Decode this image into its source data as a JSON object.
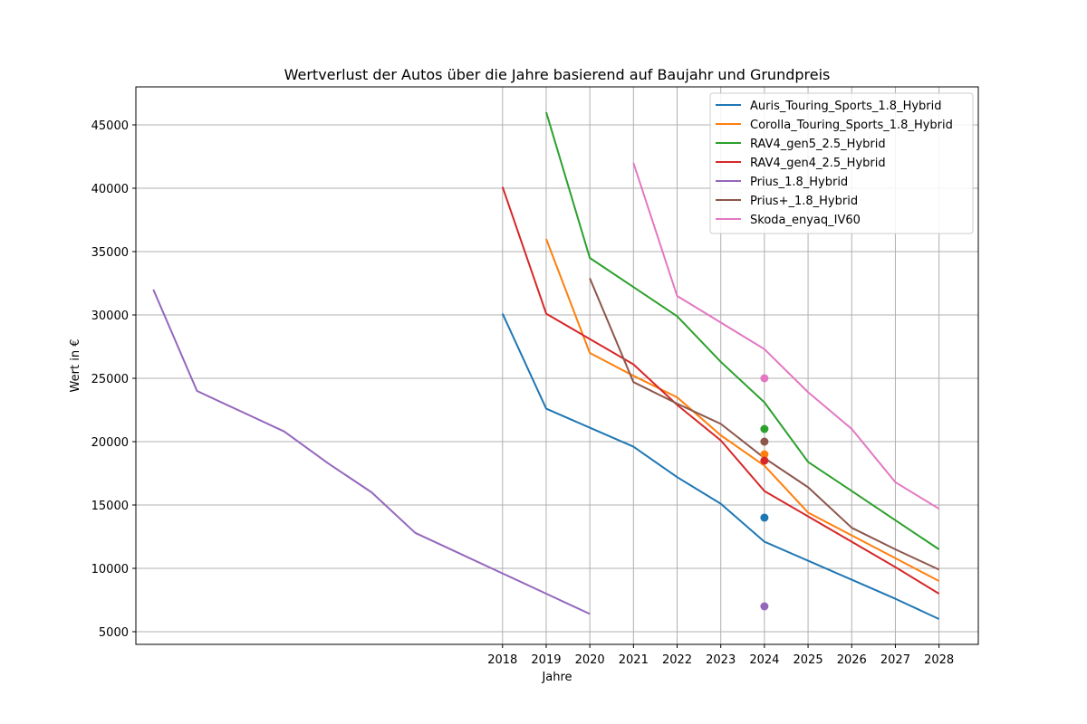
{
  "chart_data": {
    "type": "line",
    "title": "Wertverlust der Autos über die Jahre basierend auf Baujahr und Grundpreis",
    "xlabel": "Jahre",
    "ylabel": "Wert in €",
    "xlim": [
      2009.6,
      2028.9
    ],
    "ylim": [
      4000,
      48000
    ],
    "x_ticks": [
      2018,
      2019,
      2020,
      2021,
      2022,
      2023,
      2024,
      2025,
      2026,
      2027,
      2028
    ],
    "y_ticks": [
      5000,
      10000,
      15000,
      20000,
      25000,
      30000,
      35000,
      40000,
      45000
    ],
    "grid": true,
    "legend_position": "top-right",
    "series": [
      {
        "name": "Auris_Touring_Sports_1.8_Hybrid",
        "color": "#1f77b4",
        "x": [
          2018,
          2019,
          2020,
          2021,
          2022,
          2023,
          2024,
          2025,
          2026,
          2027,
          2028
        ],
        "values": [
          30100,
          22600,
          21100,
          19600,
          17200,
          15100,
          12100,
          10600,
          9100,
          7600,
          6000
        ]
      },
      {
        "name": "Corolla_Touring_Sports_1.8_Hybrid",
        "color": "#ff7f0e",
        "x": [
          2019,
          2020,
          2021,
          2022,
          2023,
          2024,
          2025,
          2026,
          2027,
          2028
        ],
        "values": [
          36000,
          27000,
          25200,
          23500,
          20500,
          18100,
          14400,
          12600,
          10800,
          9000
        ]
      },
      {
        "name": "RAV4_gen5_2.5_Hybrid",
        "color": "#2ca02c",
        "x": [
          2019,
          2020,
          2021,
          2022,
          2023,
          2024,
          2025,
          2026,
          2027,
          2028
        ],
        "values": [
          46000,
          34500,
          32200,
          29900,
          26300,
          23100,
          18400,
          16100,
          13800,
          11500
        ]
      },
      {
        "name": "RAV4_gen4_2.5_Hybrid",
        "color": "#d62728",
        "x": [
          2018,
          2019,
          2020,
          2021,
          2022,
          2023,
          2024,
          2025,
          2026,
          2027,
          2028
        ],
        "values": [
          40100,
          30100,
          28100,
          26100,
          22900,
          20100,
          16100,
          14100,
          12100,
          10100,
          8000
        ]
      },
      {
        "name": "Prius_1.8_Hybrid",
        "color": "#9467bd",
        "x": [
          2010,
          2011,
          2012,
          2013,
          2014,
          2015,
          2016,
          2017,
          2018,
          2019,
          2020
        ],
        "values": [
          32000,
          24000,
          22400,
          20800,
          18300,
          16000,
          12800,
          11200,
          9600,
          8000,
          6400
        ]
      },
      {
        "name": "Prius+_1.8_Hybrid",
        "color": "#8c564b",
        "x": [
          2020,
          2021,
          2022,
          2023,
          2024,
          2025,
          2026,
          2027,
          2028
        ],
        "values": [
          32900,
          24700,
          23000,
          21400,
          18700,
          16400,
          13200,
          11500,
          9900
        ]
      },
      {
        "name": "Skoda_enyaq_IV60",
        "color": "#e377c2",
        "x": [
          2021,
          2022,
          2023,
          2024,
          2025,
          2026,
          2027,
          2028
        ],
        "values": [
          42000,
          31500,
          29400,
          27300,
          23900,
          21000,
          16800,
          14700
        ]
      }
    ],
    "scatter_points": [
      {
        "x": 2024,
        "y": 14000,
        "color": "#1f77b4"
      },
      {
        "x": 2024,
        "y": 19000,
        "color": "#ff7f0e"
      },
      {
        "x": 2024,
        "y": 21000,
        "color": "#2ca02c"
      },
      {
        "x": 2024,
        "y": 18500,
        "color": "#d62728"
      },
      {
        "x": 2024,
        "y": 7000,
        "color": "#9467bd"
      },
      {
        "x": 2024,
        "y": 20000,
        "color": "#8c564b"
      },
      {
        "x": 2024,
        "y": 25000,
        "color": "#e377c2"
      }
    ]
  }
}
